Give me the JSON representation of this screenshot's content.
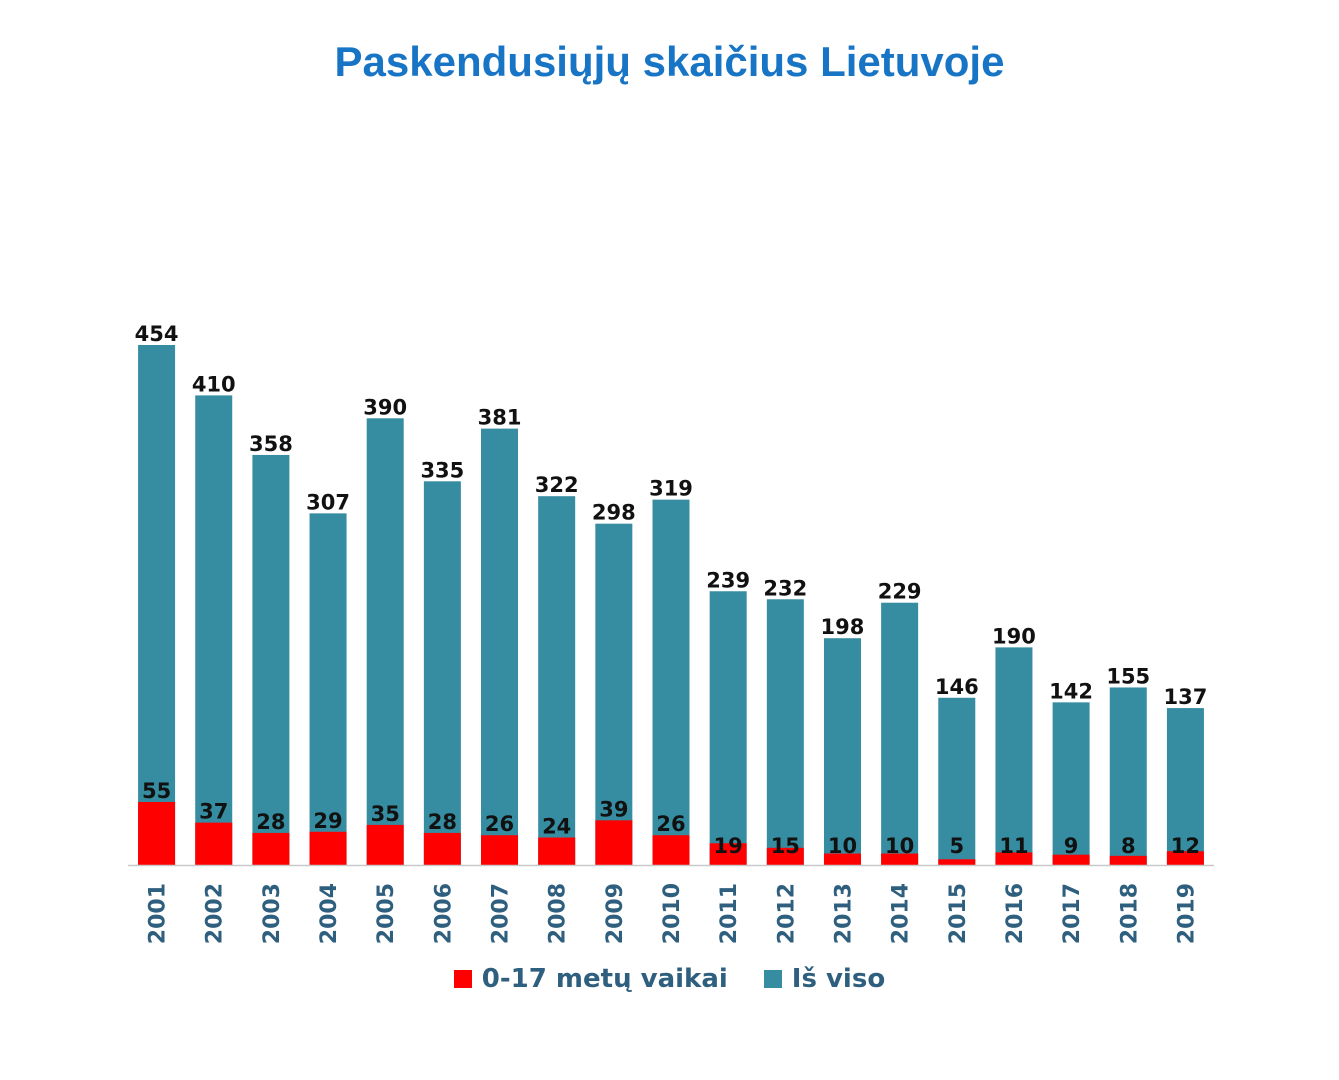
{
  "chart_data": {
    "type": "bar",
    "title": "Paskendusiųjų skaičius Lietuvoje",
    "categories": [
      "2001",
      "2002",
      "2003",
      "2004",
      "2005",
      "2006",
      "2007",
      "2008",
      "2009",
      "2010",
      "2011",
      "2012",
      "2013",
      "2014",
      "2015",
      "2016",
      "2017",
      "2018",
      "2019"
    ],
    "series": [
      {
        "name": "0-17 metų vaikai",
        "color": "#ff0000",
        "values": [
          55,
          37,
          28,
          29,
          35,
          28,
          26,
          24,
          39,
          26,
          19,
          15,
          10,
          10,
          5,
          11,
          9,
          8,
          12
        ]
      },
      {
        "name": "Iš viso",
        "color": "#368ca0",
        "values": [
          454,
          410,
          358,
          307,
          390,
          335,
          381,
          322,
          298,
          319,
          239,
          232,
          198,
          229,
          146,
          190,
          142,
          155,
          137
        ]
      }
    ],
    "ylim": [
      0,
      460
    ],
    "grid": false,
    "legend": "bottom"
  }
}
